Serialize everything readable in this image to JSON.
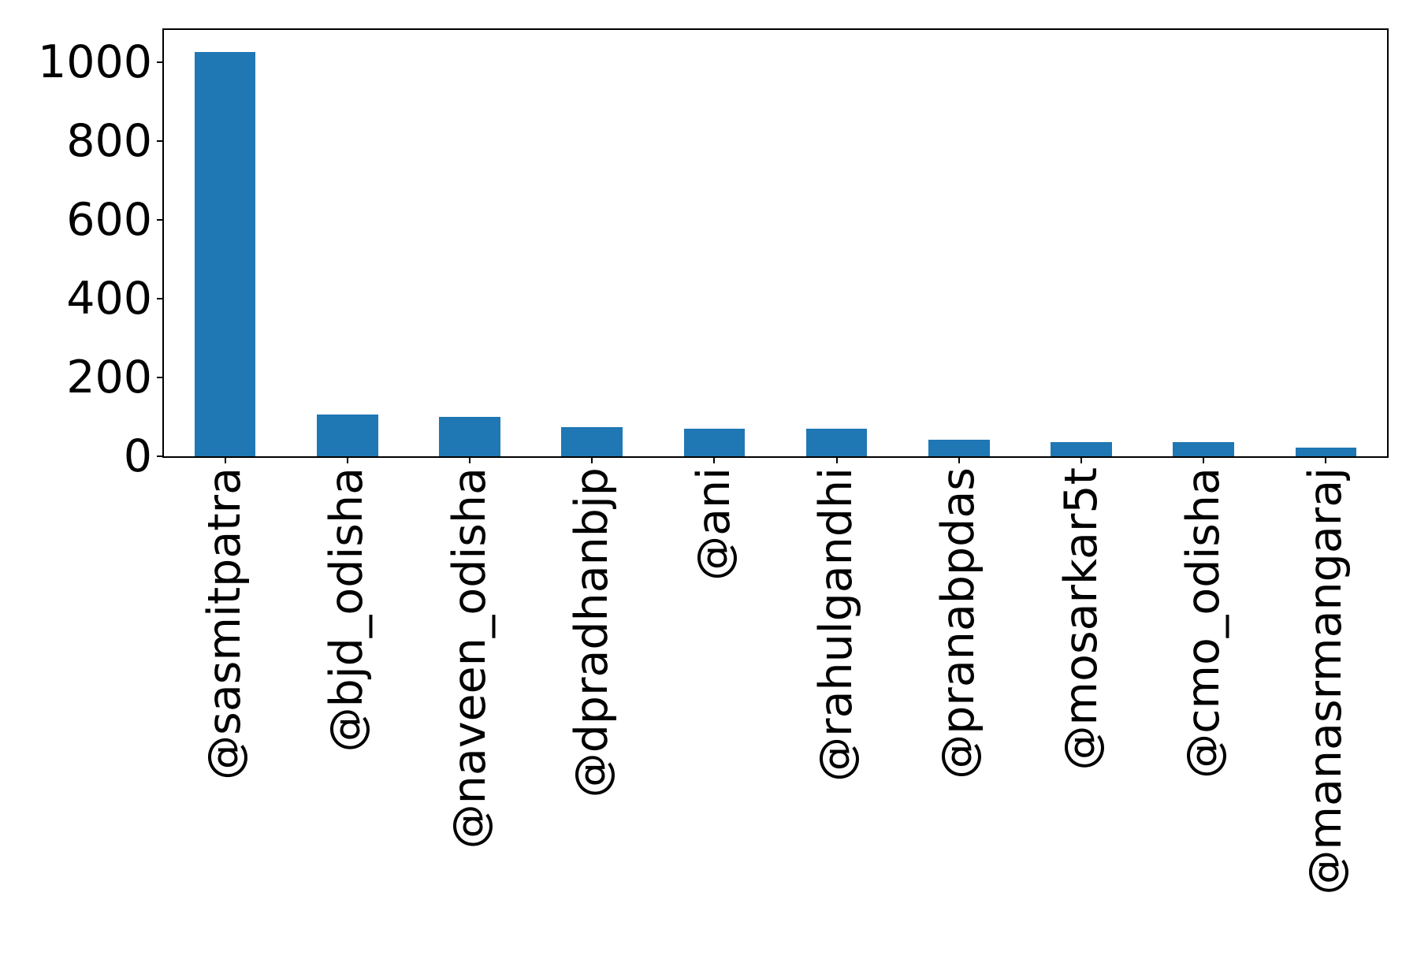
{
  "chart_data": {
    "type": "bar",
    "title": "",
    "xlabel": "",
    "ylabel": "",
    "categories": [
      "@sasmitpatra",
      "@bjd_odisha",
      "@naveen_odisha",
      "@dpradhanbjp",
      "@ani",
      "@rahulgandhi",
      "@pranabpdas",
      "@mosarkar5t",
      "@cmo_odisha",
      "@manasrmangaraj"
    ],
    "values": [
      1026,
      106,
      101,
      75,
      71,
      70,
      42,
      37,
      37,
      22
    ],
    "bar_color": "#1f77b4",
    "axis_color": "#000000",
    "text_color": "#000000",
    "ylim": [
      0,
      1082
    ],
    "yticks": [
      0,
      200,
      400,
      600,
      800,
      1000
    ],
    "bar_width_fraction": 0.5,
    "x_tick_rotation_deg": 90,
    "grid": false,
    "legend": false
  }
}
